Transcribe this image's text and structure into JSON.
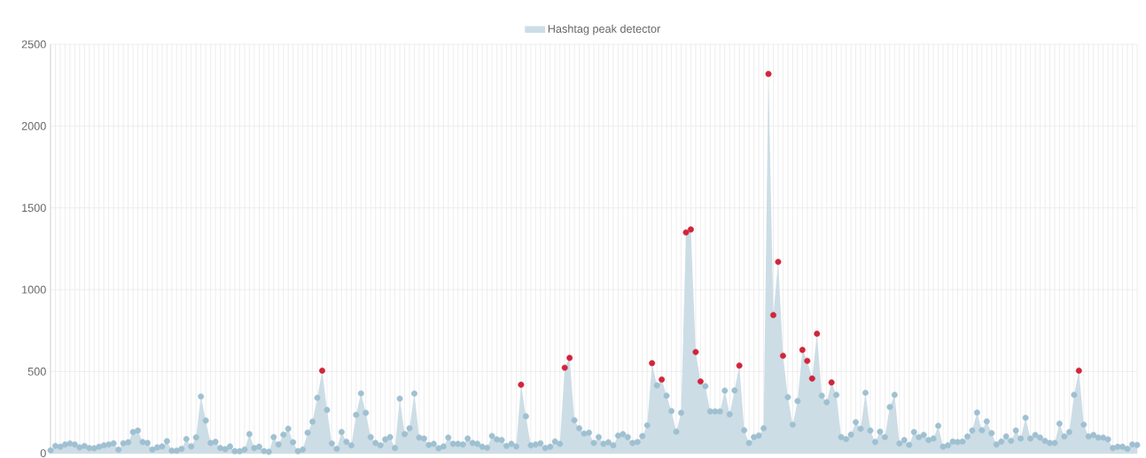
{
  "chart_data": {
    "type": "area",
    "categories": [
      null,
      null,
      null,
      null,
      null,
      null,
      null,
      null,
      null,
      null,
      null,
      null,
      null,
      null,
      null,
      null,
      null,
      null,
      null,
      null,
      null,
      null,
      null,
      null,
      null,
      null,
      null,
      null,
      null,
      null,
      null,
      null,
      null,
      null,
      null,
      null,
      null,
      null,
      null,
      null,
      null,
      null,
      null,
      null,
      null,
      null,
      null,
      null,
      null,
      null,
      null,
      null,
      null,
      null,
      null,
      null,
      null,
      null,
      null,
      null,
      null,
      null,
      null,
      null,
      null,
      null,
      null,
      null,
      null,
      null,
      null,
      null,
      null,
      null,
      null,
      null,
      null,
      null,
      null,
      null,
      null,
      null,
      null,
      null,
      null,
      null,
      null,
      null,
      null,
      null,
      null,
      null,
      null,
      null,
      null,
      null,
      null,
      null,
      null,
      null,
      null,
      null,
      null,
      null,
      null,
      null,
      null,
      null,
      null,
      null,
      null,
      null,
      null,
      null,
      null,
      null,
      null,
      null,
      null,
      null,
      null,
      null,
      null,
      null,
      null,
      null,
      null,
      null,
      null,
      null,
      null,
      null,
      null,
      null,
      null,
      null,
      null,
      null,
      null,
      null,
      null,
      null,
      null,
      null,
      null,
      null,
      null,
      null,
      null,
      null,
      null,
      null,
      null,
      null,
      null,
      null,
      null,
      null,
      null,
      null,
      null,
      null,
      null,
      null,
      null,
      null,
      null,
      null,
      null,
      null,
      null,
      null,
      null,
      null,
      null,
      null,
      null,
      null,
      null,
      null,
      null,
      null,
      null,
      null,
      null,
      null,
      null,
      null,
      null,
      null,
      null,
      null,
      null,
      null,
      null,
      null,
      null,
      null,
      null,
      null,
      null,
      null,
      null,
      null,
      null,
      null,
      null,
      null,
      null,
      null,
      null,
      null,
      null,
      null,
      null,
      null,
      null,
      null,
      null,
      null,
      null,
      null,
      null,
      null,
      null
    ],
    "series": [
      {
        "name": "Hashtag peak detector",
        "color": "#a3c2d2",
        "values": [
          18,
          45,
          40,
          54,
          60,
          54,
          36,
          45,
          32,
          31,
          40,
          49,
          54,
          61,
          22,
          61,
          67,
          130,
          139,
          69,
          63,
          23,
          36,
          42,
          74,
          16,
          16,
          27,
          87,
          42,
          97,
          347,
          200,
          63,
          70,
          32,
          25,
          42,
          13,
          13,
          23,
          117,
          32,
          40,
          14,
          9,
          99,
          54,
          114,
          150,
          67,
          13,
          23,
          126,
          193,
          339,
          505,
          265,
          60,
          27,
          130,
          70,
          49,
          235,
          366,
          247,
          99,
          63,
          49,
          85,
          99,
          32,
          334,
          117,
          153,
          365,
          96,
          90,
          51,
          58,
          31,
          42,
          96,
          58,
          58,
          54,
          90,
          63,
          58,
          40,
          34,
          106,
          85,
          81,
          45,
          58,
          42,
          419,
          226,
          49,
          54,
          61,
          32,
          40,
          72,
          58,
          523,
          583,
          202,
          153,
          121,
          126,
          63,
          99,
          58,
          67,
          49,
          108,
          117,
          99,
          63,
          69,
          105,
          171,
          551,
          415,
          451,
          352,
          258,
          132,
          247,
          1350,
          1368,
          619,
          439,
          410,
          256,
          256,
          256,
          383,
          238,
          384,
          536,
          141,
          63,
          99,
          108,
          153,
          2319,
          845,
          1170,
          596,
          343,
          175,
          319,
          632,
          565,
          457,
          731,
          352,
          312,
          433,
          357,
          99,
          87,
          114,
          190,
          150,
          370,
          139,
          69,
          132,
          99,
          283,
          357,
          60,
          81,
          51,
          130,
          99,
          112,
          81,
          90,
          168,
          40,
          49,
          72,
          69,
          72,
          103,
          139,
          249,
          141,
          195,
          123,
          54,
          72,
          103,
          76,
          139,
          90,
          217,
          90,
          112,
          96,
          76,
          63,
          63,
          181,
          103,
          130,
          357,
          505,
          175,
          103,
          112,
          96,
          96,
          85,
          32,
          40,
          40,
          27,
          54,
          51
        ],
        "colors": [
          "#9fc0d1",
          "#9fc0d1",
          "#9fc0d1",
          "#9fc0d1",
          "#9fc0d1",
          "#9fc0d1",
          "#9fc0d1",
          "#9fc0d1",
          "#9fc0d1",
          "#9fc0d1",
          "#9fc0d1",
          "#9fc0d1",
          "#9fc0d1",
          "#9fc0d1",
          "#9fc0d1",
          "#9fc0d1",
          "#9fc0d1",
          "#9fc0d1",
          "#9fc0d1",
          "#9fc0d1",
          "#9fc0d1",
          "#9fc0d1",
          "#9fc0d1",
          "#9fc0d1",
          "#9fc0d1",
          "#9fc0d1",
          "#9fc0d1",
          "#9fc0d1",
          "#9fc0d1",
          "#9fc0d1",
          "#9fc0d1",
          "#9fc0d1",
          "#9fc0d1",
          "#9fc0d1",
          "#9fc0d1",
          "#9fc0d1",
          "#9fc0d1",
          "#9fc0d1",
          "#9fc0d1",
          "#9fc0d1",
          "#9fc0d1",
          "#9fc0d1",
          "#9fc0d1",
          "#9fc0d1",
          "#9fc0d1",
          "#9fc0d1",
          "#9fc0d1",
          "#9fc0d1",
          "#9fc0d1",
          "#9fc0d1",
          "#9fc0d1",
          "#9fc0d1",
          "#9fc0d1",
          "#9fc0d1",
          "#9fc0d1",
          "#9fc0d1",
          "#d0253a",
          "#9fc0d1",
          "#9fc0d1",
          "#9fc0d1",
          "#9fc0d1",
          "#9fc0d1",
          "#9fc0d1",
          "#9fc0d1",
          "#9fc0d1",
          "#9fc0d1",
          "#9fc0d1",
          "#9fc0d1",
          "#9fc0d1",
          "#9fc0d1",
          "#9fc0d1",
          "#9fc0d1",
          "#9fc0d1",
          "#9fc0d1",
          "#9fc0d1",
          "#9fc0d1",
          "#9fc0d1",
          "#9fc0d1",
          "#9fc0d1",
          "#9fc0d1",
          "#9fc0d1",
          "#9fc0d1",
          "#9fc0d1",
          "#9fc0d1",
          "#9fc0d1",
          "#9fc0d1",
          "#9fc0d1",
          "#9fc0d1",
          "#9fc0d1",
          "#9fc0d1",
          "#9fc0d1",
          "#9fc0d1",
          "#9fc0d1",
          "#9fc0d1",
          "#9fc0d1",
          "#9fc0d1",
          "#9fc0d1",
          "#d0253a",
          "#9fc0d1",
          "#9fc0d1",
          "#9fc0d1",
          "#9fc0d1",
          "#9fc0d1",
          "#9fc0d1",
          "#9fc0d1",
          "#9fc0d1",
          "#d0253a",
          "#d0253a",
          "#9fc0d1",
          "#9fc0d1",
          "#9fc0d1",
          "#9fc0d1",
          "#9fc0d1",
          "#9fc0d1",
          "#9fc0d1",
          "#9fc0d1",
          "#9fc0d1",
          "#9fc0d1",
          "#9fc0d1",
          "#9fc0d1",
          "#9fc0d1",
          "#9fc0d1",
          "#9fc0d1",
          "#9fc0d1",
          "#d0253a",
          "#9fc0d1",
          "#d0253a",
          "#9fc0d1",
          "#9fc0d1",
          "#9fc0d1",
          "#9fc0d1",
          "#d0253a",
          "#d0253a",
          "#d0253a",
          "#d0253a",
          "#9fc0d1",
          "#9fc0d1",
          "#9fc0d1",
          "#9fc0d1",
          "#9fc0d1",
          "#9fc0d1",
          "#9fc0d1",
          "#d0253a",
          "#9fc0d1",
          "#9fc0d1",
          "#9fc0d1",
          "#9fc0d1",
          "#9fc0d1",
          "#d0253a",
          "#d0253a",
          "#d0253a",
          "#d0253a",
          "#9fc0d1",
          "#9fc0d1",
          "#9fc0d1",
          "#d0253a",
          "#d0253a",
          "#d0253a",
          "#d0253a",
          "#9fc0d1",
          "#9fc0d1",
          "#d0253a",
          "#9fc0d1",
          "#9fc0d1",
          "#9fc0d1",
          "#9fc0d1",
          "#9fc0d1",
          "#9fc0d1",
          "#9fc0d1",
          "#9fc0d1",
          "#9fc0d1",
          "#9fc0d1",
          "#9fc0d1",
          "#9fc0d1",
          "#9fc0d1",
          "#9fc0d1",
          "#9fc0d1",
          "#9fc0d1",
          "#9fc0d1",
          "#9fc0d1",
          "#9fc0d1",
          "#9fc0d1",
          "#9fc0d1",
          "#9fc0d1",
          "#9fc0d1",
          "#9fc0d1",
          "#9fc0d1",
          "#9fc0d1",
          "#9fc0d1",
          "#9fc0d1",
          "#9fc0d1",
          "#9fc0d1",
          "#9fc0d1",
          "#9fc0d1",
          "#9fc0d1",
          "#9fc0d1",
          "#9fc0d1",
          "#9fc0d1",
          "#9fc0d1",
          "#9fc0d1",
          "#9fc0d1",
          "#9fc0d1",
          "#9fc0d1",
          "#9fc0d1",
          "#9fc0d1",
          "#9fc0d1",
          "#9fc0d1",
          "#9fc0d1",
          "#9fc0d1",
          "#9fc0d1",
          "#9fc0d1",
          "#9fc0d1",
          "#d0253a",
          "#9fc0d1",
          "#9fc0d1",
          "#9fc0d1",
          "#9fc0d1",
          "#9fc0d1",
          "#9fc0d1",
          "#9fc0d1",
          "#9fc0d1",
          "#9fc0d1",
          "#9fc0d1",
          "#9fc0d1",
          "#9fc0d1"
        ]
      }
    ],
    "ylim": [
      0,
      2500
    ],
    "yticks": [
      0,
      500,
      1000,
      1500,
      2000,
      2500
    ],
    "grid": true,
    "legend": "top",
    "marker": "circle",
    "tick_labels": "y"
  }
}
